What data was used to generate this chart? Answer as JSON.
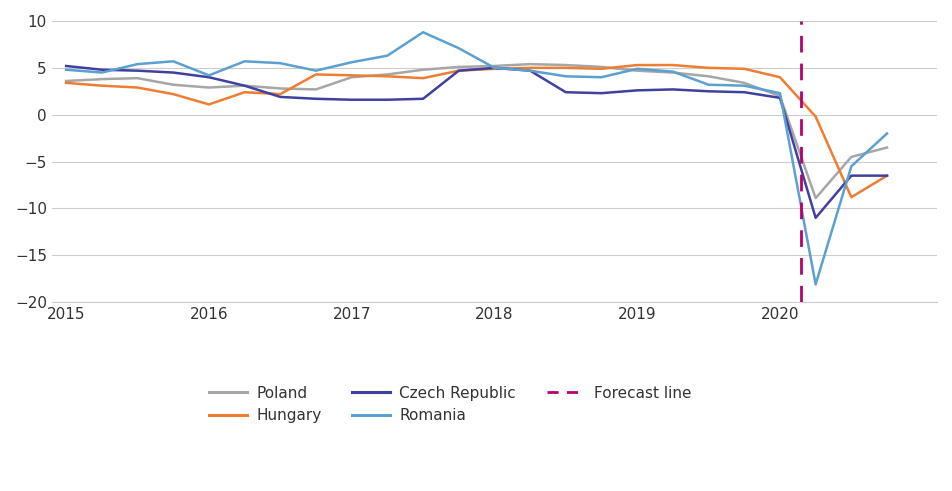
{
  "ylim": [
    -20,
    10
  ],
  "yticks": [
    -20,
    -15,
    -10,
    -5,
    0,
    5,
    10
  ],
  "forecast_x": 2020.15,
  "xlim": [
    2014.9,
    2021.1
  ],
  "background_color": "#ffffff",
  "grid_color": "#cccccc",
  "series": {
    "Poland": {
      "color": "#a6a6a6",
      "x": [
        2015.0,
        2015.25,
        2015.5,
        2015.75,
        2016.0,
        2016.25,
        2016.5,
        2016.75,
        2017.0,
        2017.25,
        2017.5,
        2017.75,
        2018.0,
        2018.25,
        2018.5,
        2018.75,
        2019.0,
        2019.25,
        2019.5,
        2019.75,
        2020.0,
        2020.25,
        2020.5,
        2020.75
      ],
      "y": [
        3.6,
        3.8,
        3.9,
        3.2,
        2.9,
        3.1,
        2.8,
        2.7,
        4.0,
        4.3,
        4.8,
        5.1,
        5.2,
        5.4,
        5.3,
        5.1,
        4.7,
        4.5,
        4.1,
        3.4,
        2.0,
        -8.9,
        -4.5,
        -3.5
      ],
      "linewidth": 1.8
    },
    "Hungary": {
      "color": "#ed7d31",
      "x": [
        2015.0,
        2015.25,
        2015.5,
        2015.75,
        2016.0,
        2016.25,
        2016.5,
        2016.75,
        2017.0,
        2017.25,
        2017.5,
        2017.75,
        2018.0,
        2018.25,
        2018.5,
        2018.75,
        2019.0,
        2019.25,
        2019.5,
        2019.75,
        2020.0,
        2020.25,
        2020.5,
        2020.75
      ],
      "y": [
        3.4,
        3.1,
        2.9,
        2.2,
        1.1,
        2.4,
        2.2,
        4.3,
        4.2,
        4.1,
        3.9,
        4.7,
        4.9,
        5.0,
        5.0,
        4.9,
        5.3,
        5.3,
        5.0,
        4.9,
        4.0,
        -0.2,
        -8.8,
        -6.5
      ],
      "linewidth": 1.8
    },
    "Czech Republic": {
      "color": "#4040a0",
      "x": [
        2015.0,
        2015.25,
        2015.5,
        2015.75,
        2016.0,
        2016.25,
        2016.5,
        2016.75,
        2017.0,
        2017.25,
        2017.5,
        2017.75,
        2018.0,
        2018.25,
        2018.5,
        2018.75,
        2019.0,
        2019.25,
        2019.5,
        2019.75,
        2020.0,
        2020.25,
        2020.5,
        2020.75
      ],
      "y": [
        5.2,
        4.8,
        4.7,
        4.5,
        4.0,
        3.1,
        1.9,
        1.7,
        1.6,
        1.6,
        1.7,
        4.7,
        5.0,
        4.7,
        2.4,
        2.3,
        2.6,
        2.7,
        2.5,
        2.4,
        1.8,
        -11.0,
        -6.5,
        -6.5
      ],
      "linewidth": 1.8
    },
    "Romania": {
      "color": "#5ba0d0",
      "x": [
        2015.0,
        2015.25,
        2015.5,
        2015.75,
        2016.0,
        2016.25,
        2016.5,
        2016.75,
        2017.0,
        2017.25,
        2017.5,
        2017.75,
        2018.0,
        2018.25,
        2018.5,
        2018.75,
        2019.0,
        2019.25,
        2019.5,
        2019.75,
        2020.0,
        2020.25,
        2020.5,
        2020.75
      ],
      "y": [
        4.8,
        4.5,
        5.4,
        5.7,
        4.2,
        5.7,
        5.5,
        4.7,
        5.6,
        6.3,
        8.8,
        7.1,
        5.0,
        4.7,
        4.1,
        4.0,
        4.9,
        4.6,
        3.2,
        3.1,
        2.3,
        -18.1,
        -5.5,
        -2.0
      ],
      "linewidth": 1.8
    }
  },
  "legend_rows": [
    [
      "Poland",
      "Hungary",
      "Czech Republic"
    ],
    [
      "Romania",
      "Forecast line"
    ]
  ],
  "legend_colors": {
    "Poland": "#a6a6a6",
    "Hungary": "#ed7d31",
    "Czech Republic": "#4040a0",
    "Romania": "#5ba0d0",
    "Forecast line": "#b5006e"
  }
}
